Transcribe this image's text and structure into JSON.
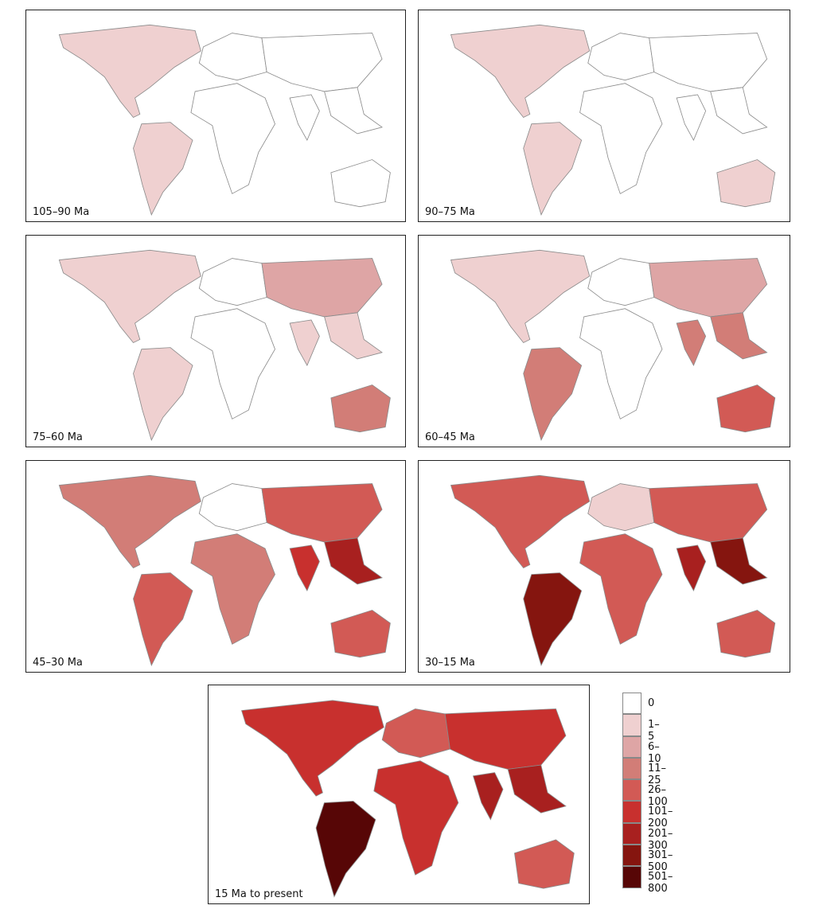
{
  "panels": [
    {
      "label": "105–90 Ma",
      "fills": [
        "#efd0d0",
        "#efd0d0",
        "#ffffff",
        "#ffffff",
        "#ffffff",
        "#ffffff",
        "#ffffff",
        "#ffffff"
      ]
    },
    {
      "label": "90–75 Ma",
      "fills": [
        "#efd0d0",
        "#efd0d0",
        "#ffffff",
        "#ffffff",
        "#ffffff",
        "#ffffff",
        "#ffffff",
        "#efd0d0"
      ]
    },
    {
      "label": "75–60 Ma",
      "fills": [
        "#efd0d0",
        "#efd0d0",
        "#ffffff",
        "#ffffff",
        "#dea5a5",
        "#efd0d0",
        "#efd0d0",
        "#d27d77"
      ]
    },
    {
      "label": "60–45 Ma",
      "fills": [
        "#efd0d0",
        "#d27d77",
        "#ffffff",
        "#ffffff",
        "#dea5a5",
        "#d27d77",
        "#d27d77",
        "#d25a55"
      ]
    },
    {
      "label": "45–30 Ma",
      "fills": [
        "#d27d77",
        "#d25a55",
        "#ffffff",
        "#d27d77",
        "#d25a55",
        "#c8302e",
        "#a8201f",
        "#d25a55"
      ]
    },
    {
      "label": "30–15 Ma",
      "fills": [
        "#d25a55",
        "#85150f",
        "#efd0d0",
        "#d25a55",
        "#d25a55",
        "#a8201f",
        "#85150f",
        "#d25a55"
      ]
    },
    {
      "label": "15 Ma to present",
      "fills": [
        "#c8302e",
        "#570606",
        "#d25a55",
        "#c8302e",
        "#c8302e",
        "#a8201f",
        "#a8201f",
        "#d25a55"
      ]
    }
  ],
  "legend": {
    "classes": [
      {
        "label": "0",
        "color": "#ffffff"
      },
      {
        "label": "1–5",
        "color": "#efd0d0"
      },
      {
        "label": "6–10",
        "color": "#dea5a5"
      },
      {
        "label": "11–25",
        "color": "#d27d77"
      },
      {
        "label": "26–100",
        "color": "#d25a55"
      },
      {
        "label": "101–200",
        "color": "#c8302e"
      },
      {
        "label": "201–300",
        "color": "#a8201f"
      },
      {
        "label": "301–500",
        "color": "#85150f"
      },
      {
        "label": "501–800",
        "color": "#570606"
      }
    ]
  }
}
